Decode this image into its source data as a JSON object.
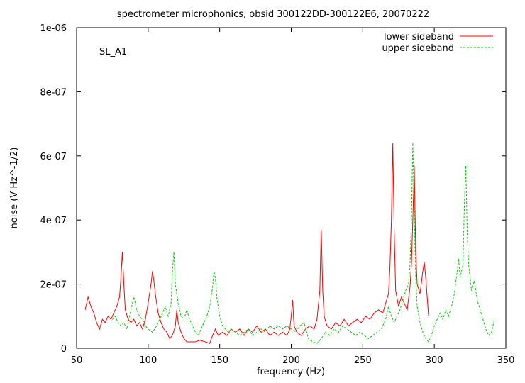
{
  "chart_data": {
    "type": "line",
    "title": "spectrometer microphonics, obsid 300122DD-300122E6, 20070222",
    "xlabel": "frequency (Hz)",
    "ylabel": "noise (V Hz^-1/2)",
    "xlim": [
      50,
      350
    ],
    "ylim": [
      0,
      1e-06
    ],
    "x_ticks": [
      "50",
      "100",
      "150",
      "200",
      "250",
      "300",
      "350"
    ],
    "y_ticks": [
      "0",
      "2e-07",
      "4e-07",
      "6e-07",
      "8e-07",
      "1e-06"
    ],
    "annotation": "SL_A1",
    "grid": false,
    "legend_position": "top-right",
    "series": [
      {
        "name": "lower sideband",
        "color": "#ff0000",
        "dash": "solid",
        "points": [
          [
            56,
            1.2e-07
          ],
          [
            58,
            1.6e-07
          ],
          [
            60,
            1.3e-07
          ],
          [
            62,
            1.1e-07
          ],
          [
            64,
            8e-08
          ],
          [
            66,
            6e-08
          ],
          [
            68,
            9e-08
          ],
          [
            70,
            8e-08
          ],
          [
            72,
            1e-07
          ],
          [
            74,
            9e-08
          ],
          [
            76,
            1.1e-07
          ],
          [
            78,
            1.3e-07
          ],
          [
            80,
            1.6e-07
          ],
          [
            81,
            2.2e-07
          ],
          [
            82,
            3e-07
          ],
          [
            83,
            2e-07
          ],
          [
            84,
            1.2e-07
          ],
          [
            86,
            9e-08
          ],
          [
            88,
            8e-08
          ],
          [
            90,
            9e-08
          ],
          [
            92,
            7e-08
          ],
          [
            94,
            8e-08
          ],
          [
            96,
            6e-08
          ],
          [
            98,
            9e-08
          ],
          [
            100,
            1.4e-07
          ],
          [
            102,
            2e-07
          ],
          [
            103,
            2.4e-07
          ],
          [
            104,
            2.1e-07
          ],
          [
            105,
            1.7e-07
          ],
          [
            107,
            1.1e-07
          ],
          [
            109,
            8e-08
          ],
          [
            111,
            6e-08
          ],
          [
            113,
            5e-08
          ],
          [
            115,
            3e-08
          ],
          [
            117,
            4e-08
          ],
          [
            119,
            7e-08
          ],
          [
            120,
            1.2e-07
          ],
          [
            121,
            8e-08
          ],
          [
            123,
            5e-08
          ],
          [
            125,
            3e-08
          ],
          [
            127,
            2e-08
          ],
          [
            130,
            2e-08
          ],
          [
            133,
            2e-08
          ],
          [
            136,
            2.5e-08
          ],
          [
            140,
            2e-08
          ],
          [
            143,
            1.5e-08
          ],
          [
            145,
            4e-08
          ],
          [
            147,
            6e-08
          ],
          [
            149,
            4e-08
          ],
          [
            152,
            5e-08
          ],
          [
            155,
            4e-08
          ],
          [
            158,
            6e-08
          ],
          [
            161,
            5e-08
          ],
          [
            164,
            6e-08
          ],
          [
            167,
            4e-08
          ],
          [
            170,
            6e-08
          ],
          [
            173,
            5e-08
          ],
          [
            176,
            7e-08
          ],
          [
            179,
            5e-08
          ],
          [
            182,
            6e-08
          ],
          [
            185,
            4e-08
          ],
          [
            188,
            5e-08
          ],
          [
            191,
            4e-08
          ],
          [
            194,
            5e-08
          ],
          [
            197,
            4e-08
          ],
          [
            199,
            6e-08
          ],
          [
            200,
            1e-07
          ],
          [
            201,
            1.5e-07
          ],
          [
            202,
            7e-08
          ],
          [
            204,
            5e-08
          ],
          [
            207,
            4e-08
          ],
          [
            210,
            6e-08
          ],
          [
            213,
            7e-08
          ],
          [
            216,
            6e-08
          ],
          [
            218,
            9e-08
          ],
          [
            220,
            1.8e-07
          ],
          [
            221,
            3.7e-07
          ],
          [
            222,
            1.8e-07
          ],
          [
            223,
            1e-07
          ],
          [
            225,
            7e-08
          ],
          [
            228,
            6e-08
          ],
          [
            231,
            8e-08
          ],
          [
            234,
            7e-08
          ],
          [
            237,
            9e-08
          ],
          [
            240,
            7e-08
          ],
          [
            243,
            8e-08
          ],
          [
            246,
            9e-08
          ],
          [
            249,
            8e-08
          ],
          [
            252,
            1e-07
          ],
          [
            255,
            9e-08
          ],
          [
            258,
            1.1e-07
          ],
          [
            261,
            1.2e-07
          ],
          [
            264,
            1.1e-07
          ],
          [
            266,
            1.4e-07
          ],
          [
            268,
            1.7e-07
          ],
          [
            269,
            2.5e-07
          ],
          [
            270,
            4e-07
          ],
          [
            271,
            6.4e-07
          ],
          [
            272,
            3.6e-07
          ],
          [
            273,
            1.8e-07
          ],
          [
            275,
            1.3e-07
          ],
          [
            277,
            1.6e-07
          ],
          [
            279,
            1.4e-07
          ],
          [
            281,
            1.2e-07
          ],
          [
            283,
            1.9e-07
          ],
          [
            284,
            2.6e-07
          ],
          [
            285,
            4e-07
          ],
          [
            286,
            5.7e-07
          ],
          [
            287,
            3e-07
          ],
          [
            288,
            2e-07
          ],
          [
            290,
            1.7e-07
          ],
          [
            292,
            2.4e-07
          ],
          [
            293,
            2.7e-07
          ],
          [
            294,
            2.2e-07
          ],
          [
            295,
            1.6e-07
          ],
          [
            296,
            1e-07
          ]
        ]
      },
      {
        "name": "upper sideband",
        "color": "#00cc00",
        "dash": "dashed",
        "points": [
          [
            75,
            9e-08
          ],
          [
            77,
            1e-07
          ],
          [
            79,
            8e-08
          ],
          [
            81,
            7e-08
          ],
          [
            83,
            8e-08
          ],
          [
            85,
            6e-08
          ],
          [
            87,
            1e-07
          ],
          [
            89,
            1.4e-07
          ],
          [
            90,
            1.6e-07
          ],
          [
            92,
            1.2e-07
          ],
          [
            94,
            1e-07
          ],
          [
            96,
            9e-08
          ],
          [
            98,
            7e-08
          ],
          [
            100,
            6e-08
          ],
          [
            103,
            5e-08
          ],
          [
            106,
            7e-08
          ],
          [
            108,
            9e-08
          ],
          [
            110,
            1.1e-07
          ],
          [
            112,
            1.3e-07
          ],
          [
            114,
            1e-07
          ],
          [
            116,
            1.4e-07
          ],
          [
            117,
            2.4e-07
          ],
          [
            118,
            3e-07
          ],
          [
            119,
            2e-07
          ],
          [
            121,
            1.4e-07
          ],
          [
            123,
            1e-07
          ],
          [
            125,
            9e-08
          ],
          [
            127,
            1.2e-07
          ],
          [
            129,
            9e-08
          ],
          [
            131,
            7e-08
          ],
          [
            133,
            5e-08
          ],
          [
            135,
            4e-08
          ],
          [
            137,
            6e-08
          ],
          [
            139,
            8e-08
          ],
          [
            141,
            1e-07
          ],
          [
            143,
            1.3e-07
          ],
          [
            145,
            1.9e-07
          ],
          [
            146,
            2.4e-07
          ],
          [
            147,
            2.2e-07
          ],
          [
            148,
            1.6e-07
          ],
          [
            150,
            1e-07
          ],
          [
            152,
            7e-08
          ],
          [
            154,
            6e-08
          ],
          [
            156,
            5e-08
          ],
          [
            158,
            6e-08
          ],
          [
            161,
            5e-08
          ],
          [
            164,
            4e-08
          ],
          [
            167,
            5e-08
          ],
          [
            170,
            6e-08
          ],
          [
            173,
            4e-08
          ],
          [
            176,
            5e-08
          ],
          [
            179,
            6e-08
          ],
          [
            182,
            5e-08
          ],
          [
            185,
            7e-08
          ],
          [
            188,
            6e-08
          ],
          [
            191,
            7e-08
          ],
          [
            194,
            6e-08
          ],
          [
            197,
            7e-08
          ],
          [
            200,
            6e-08
          ],
          [
            203,
            5e-08
          ],
          [
            206,
            7e-08
          ],
          [
            209,
            8e-08
          ],
          [
            212,
            3e-08
          ],
          [
            215,
            2e-08
          ],
          [
            218,
            1.5e-08
          ],
          [
            221,
            3e-08
          ],
          [
            224,
            5e-08
          ],
          [
            227,
            4e-08
          ],
          [
            230,
            6e-08
          ],
          [
            233,
            5e-08
          ],
          [
            236,
            7e-08
          ],
          [
            239,
            6e-08
          ],
          [
            242,
            5e-08
          ],
          [
            245,
            4e-08
          ],
          [
            248,
            5e-08
          ],
          [
            251,
            4e-08
          ],
          [
            254,
            3e-08
          ],
          [
            257,
            4e-08
          ],
          [
            260,
            5e-08
          ],
          [
            263,
            6e-08
          ],
          [
            266,
            9e-08
          ],
          [
            268,
            1.3e-07
          ],
          [
            270,
            1e-07
          ],
          [
            272,
            8e-08
          ],
          [
            274,
            1e-07
          ],
          [
            276,
            1.2e-07
          ],
          [
            278,
            1.5e-07
          ],
          [
            280,
            1.8e-07
          ],
          [
            282,
            2e-07
          ],
          [
            283,
            2.6e-07
          ],
          [
            284,
            4e-07
          ],
          [
            285,
            6.4e-07
          ],
          [
            286,
            4.2e-07
          ],
          [
            287,
            2.2e-07
          ],
          [
            288,
            1.3e-07
          ],
          [
            290,
            8e-08
          ],
          [
            292,
            5e-08
          ],
          [
            294,
            3e-08
          ],
          [
            296,
            2e-08
          ],
          [
            298,
            4e-08
          ],
          [
            300,
            7e-08
          ],
          [
            302,
            9e-08
          ],
          [
            304,
            1.1e-07
          ],
          [
            306,
            9e-08
          ],
          [
            308,
            1.2e-07
          ],
          [
            310,
            1e-07
          ],
          [
            312,
            1.3e-07
          ],
          [
            314,
            1.7e-07
          ],
          [
            316,
            2.4e-07
          ],
          [
            317,
            2.8e-07
          ],
          [
            318,
            2.2e-07
          ],
          [
            320,
            2.6e-07
          ],
          [
            321,
            4.4e-07
          ],
          [
            322,
            5.7e-07
          ],
          [
            323,
            3.6e-07
          ],
          [
            324,
            2.6e-07
          ],
          [
            326,
            1.8e-07
          ],
          [
            328,
            2.1e-07
          ],
          [
            330,
            1.5e-07
          ],
          [
            332,
            1.2e-07
          ],
          [
            334,
            9e-08
          ],
          [
            336,
            6e-08
          ],
          [
            338,
            4e-08
          ],
          [
            340,
            5e-08
          ],
          [
            342,
            9e-08
          ]
        ]
      }
    ]
  }
}
